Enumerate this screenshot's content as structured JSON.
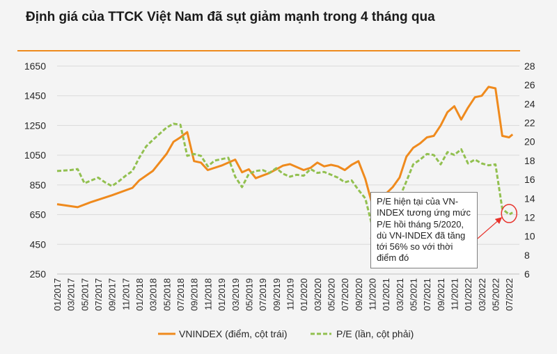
{
  "title": "Định giá của TTCK Việt Nam đã sụt giảm mạnh trong 4 tháng qua",
  "annotation": "P/E hiện tại của VN-INDEX tương ứng mức P/E hồi tháng 5/2020, dù VN-INDEX đã tăng tới 56% so với thời điểm đó",
  "colors": {
    "vnindex": "#ef8a1d",
    "pe": "#92c050",
    "accent": "#ee8a1c",
    "highlight": "#e8322b"
  },
  "chart_data": {
    "type": "line",
    "title": "Định giá của TTCK Việt Nam đã sụt giảm mạnh trong 4 tháng qua",
    "x_ticks": [
      "01/2017",
      "03/2017",
      "05/2017",
      "07/2017",
      "09/2017",
      "11/2017",
      "01/2018",
      "03/2018",
      "05/2018",
      "07/2018",
      "09/2018",
      "11/2018",
      "01/2019",
      "03/2019",
      "05/2019",
      "07/2019",
      "09/2019",
      "11/2019",
      "01/2020",
      "03/2020",
      "05/2020",
      "07/2020",
      "09/2020",
      "11/2020",
      "01/2021",
      "03/2021",
      "05/2021",
      "07/2021",
      "09/2021",
      "11/2021",
      "01/2022",
      "03/2022",
      "05/2022",
      "07/2022"
    ],
    "y_left": {
      "ticks": [
        "250",
        "450",
        "650",
        "850",
        "1050",
        "1250",
        "1450",
        "1650"
      ],
      "min": 250,
      "max": 1650
    },
    "y_right": {
      "ticks": [
        "6",
        "8",
        "10",
        "12",
        "14",
        "16",
        "18",
        "20",
        "22",
        "24",
        "26",
        "28"
      ],
      "min": 6,
      "max": 28
    },
    "series": [
      {
        "name": "VNINDEX (điểm, cột trái)",
        "axis": "left",
        "style": "solid",
        "x": [
          0,
          3,
          5,
          8,
          11,
          12,
          14,
          16,
          17,
          18,
          19,
          20,
          21,
          22,
          24,
          26,
          27,
          28,
          29,
          31,
          32,
          33,
          34,
          35,
          36,
          37,
          38,
          39,
          40,
          41,
          42,
          43,
          44,
          45,
          46,
          47,
          48,
          49,
          50,
          51,
          52,
          53,
          54,
          55,
          56,
          57,
          58,
          59,
          60,
          61,
          62,
          63,
          64,
          65,
          66,
          66.5
        ],
        "values": [
          720,
          700,
          735,
          780,
          830,
          880,
          945,
          1060,
          1140,
          1170,
          1205,
          1010,
          1000,
          950,
          980,
          1020,
          935,
          955,
          895,
          930,
          955,
          980,
          990,
          970,
          950,
          965,
          1000,
          975,
          985,
          975,
          950,
          985,
          1010,
          890,
          720,
          670,
          790,
          835,
          900,
          1040,
          1100,
          1130,
          1170,
          1180,
          1250,
          1340,
          1380,
          1290,
          1370,
          1440,
          1450,
          1510,
          1500,
          1180,
          1170,
          1190
        ]
      },
      {
        "name": "P/E (lần, cột phải)",
        "axis": "right",
        "style": "dashed",
        "x": [
          0,
          2,
          3,
          4,
          5,
          6,
          7,
          8,
          9,
          10,
          11,
          12,
          13,
          14,
          16,
          17,
          18,
          19,
          20,
          21,
          22,
          23,
          25,
          26,
          27,
          28,
          29,
          30,
          31,
          32,
          33,
          34,
          35,
          36,
          37,
          38,
          39,
          40,
          41,
          42,
          43,
          44,
          45,
          46,
          46.5,
          47,
          48,
          49,
          50,
          51,
          52,
          53,
          54,
          55,
          56,
          57,
          58,
          59,
          60,
          61,
          62,
          63,
          64,
          65,
          66,
          66.5
        ],
        "values": [
          16.9,
          17.0,
          17.1,
          15.6,
          15.9,
          16.2,
          15.7,
          15.3,
          15.8,
          16.4,
          16.9,
          18.3,
          19.5,
          20.2,
          21.5,
          21.9,
          21.8,
          18.5,
          18.7,
          18.5,
          17.4,
          18.0,
          18.3,
          16.3,
          15.2,
          16.6,
          16.9,
          17.0,
          16.7,
          17.2,
          16.6,
          16.3,
          16.5,
          16.4,
          17.1,
          16.7,
          16.8,
          16.5,
          16.2,
          15.7,
          15.9,
          14.9,
          14.0,
          11.1,
          10.4,
          12.4,
          12.7,
          13.1,
          14.1,
          15.8,
          17.6,
          18.1,
          18.7,
          18.6,
          17.6,
          18.9,
          18.6,
          19.2,
          17.7,
          18.1,
          17.7,
          17.5,
          17.6,
          12.9,
          12.3,
          12.5
        ]
      }
    ],
    "annotations": [
      "P/E hiện tại của VN-INDEX tương ứng mức P/E hồi tháng 5/2020, dù VN-INDEX đã tăng tới 56% so với thời điểm đó"
    ]
  }
}
